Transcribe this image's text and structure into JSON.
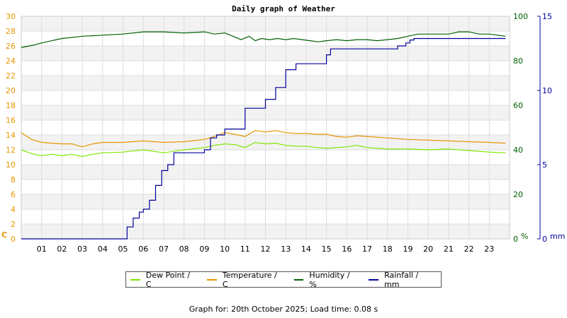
{
  "title": "Daily graph of Weather",
  "footer": "Graph for: 20th October 2025; Load time: 0.08 s",
  "colors": {
    "dew_point": "#7ee600",
    "temperature": "#e69500",
    "humidity": "#005f00",
    "rainfall": "#00009c",
    "axis_left": "#e69500",
    "axis_humidity": "#005f00",
    "axis_rain": "#00009c",
    "band": "#f2f2f2",
    "grid": "#dddddd"
  },
  "legend": [
    {
      "label": "Dew Point / C",
      "color": "#7ee600"
    },
    {
      "label": "Temperature / C",
      "color": "#e69500"
    },
    {
      "label": "Humidity / %",
      "color": "#005f00"
    },
    {
      "label": "Rainfall / mm",
      "color": "#00009c"
    }
  ],
  "chart_data": {
    "type": "line",
    "title": "Daily graph of Weather",
    "x_ticks": [
      "01",
      "02",
      "03",
      "04",
      "05",
      "06",
      "07",
      "08",
      "09",
      "10",
      "11",
      "12",
      "13",
      "14",
      "15",
      "16",
      "17",
      "18",
      "19",
      "20",
      "21",
      "22",
      "23"
    ],
    "xlim": [
      0,
      24
    ],
    "grid": true,
    "legend_position": "bottom",
    "axes": {
      "left": {
        "unit_label": "C",
        "range": [
          0,
          30
        ],
        "ticks": [
          "0",
          "2",
          "4",
          "6",
          "8",
          "10",
          "12",
          "14",
          "16",
          "18",
          "20",
          "22",
          "24",
          "26",
          "28",
          "30"
        ]
      },
      "humidity": {
        "unit_label": "%",
        "range": [
          0,
          100
        ],
        "ticks": [
          "0",
          "20",
          "40",
          "60",
          "80",
          "100"
        ]
      },
      "rain": {
        "unit_label": "mm",
        "range": [
          0,
          15
        ],
        "ticks": [
          "0",
          "5",
          "10",
          "15"
        ]
      }
    },
    "series": [
      {
        "name": "Dew Point / C",
        "axis": "left",
        "x": [
          0,
          0.5,
          1,
          1.5,
          2,
          2.5,
          3,
          3.5,
          4,
          5,
          6,
          7,
          8,
          9,
          9.5,
          10,
          10.5,
          11,
          11.5,
          12,
          12.5,
          13,
          13.5,
          14,
          14.5,
          15,
          15.5,
          16,
          16.5,
          17,
          18,
          19,
          20,
          21,
          22,
          23,
          23.8
        ],
        "y": [
          12.0,
          11.5,
          11.2,
          11.4,
          11.2,
          11.4,
          11.1,
          11.4,
          11.6,
          11.7,
          12.0,
          11.6,
          12.0,
          12.3,
          12.6,
          12.8,
          12.7,
          12.3,
          13.0,
          12.8,
          12.9,
          12.6,
          12.5,
          12.5,
          12.3,
          12.2,
          12.3,
          12.4,
          12.6,
          12.3,
          12.1,
          12.1,
          12.0,
          12.1,
          11.9,
          11.7,
          11.6
        ]
      },
      {
        "name": "Temperature / C",
        "axis": "left",
        "x": [
          0,
          0.5,
          1,
          1.5,
          2,
          2.5,
          3,
          3.5,
          4,
          5,
          6,
          7,
          8,
          9,
          9.5,
          10,
          10.5,
          11,
          11.5,
          12,
          12.5,
          13,
          13.5,
          14,
          14.5,
          15,
          15.5,
          16,
          16.5,
          17,
          18,
          19,
          20,
          21,
          22,
          23,
          23.8
        ],
        "y": [
          14.3,
          13.4,
          13.0,
          12.9,
          12.8,
          12.8,
          12.4,
          12.8,
          13.0,
          13.0,
          13.2,
          13.0,
          13.1,
          13.4,
          13.8,
          14.3,
          14.1,
          13.8,
          14.6,
          14.4,
          14.6,
          14.3,
          14.2,
          14.2,
          14.1,
          14.1,
          13.8,
          13.7,
          13.9,
          13.8,
          13.6,
          13.4,
          13.3,
          13.2,
          13.1,
          13.0,
          12.9
        ]
      },
      {
        "name": "Humidity / %",
        "axis": "humidity",
        "x": [
          0,
          0.3,
          0.6,
          1,
          1.5,
          2,
          3,
          4,
          5,
          6,
          7,
          8,
          9,
          9.5,
          10,
          10.4,
          10.8,
          11.2,
          11.5,
          11.8,
          12.2,
          12.6,
          13,
          13.4,
          13.8,
          14.2,
          14.6,
          15,
          15.5,
          16,
          16.5,
          17,
          17.5,
          18,
          18.5,
          19,
          19.5,
          20,
          20.5,
          21,
          21.5,
          22,
          22.5,
          23,
          23.8
        ],
        "y": [
          86,
          86.5,
          87,
          88,
          89,
          90,
          91,
          91.5,
          92,
          93,
          93,
          92.5,
          93,
          92,
          92.5,
          91,
          89.5,
          91,
          89,
          90,
          89.5,
          90,
          89.5,
          90,
          89.5,
          89,
          88.5,
          89,
          89.5,
          89,
          89.5,
          89.5,
          89,
          89.5,
          90,
          91,
          92,
          92,
          92,
          92,
          93,
          93,
          92,
          92,
          91
        ]
      },
      {
        "name": "Rainfall / mm",
        "axis": "rain",
        "x": [
          0,
          5,
          5.2,
          5.5,
          5.8,
          6,
          6.3,
          6.6,
          6.9,
          7.2,
          7.5,
          8,
          8.5,
          9,
          9.3,
          9.6,
          10,
          10.5,
          11,
          11.5,
          12,
          12.5,
          13,
          13.5,
          14,
          14.5,
          15,
          15.2,
          15.5,
          16,
          16.5,
          17,
          18,
          18.5,
          18.9,
          19.1,
          19.3,
          20,
          21,
          22,
          23,
          23.8
        ],
        "y": [
          0,
          0,
          0.8,
          1.4,
          1.8,
          2.0,
          2.6,
          3.6,
          4.6,
          5.0,
          5.8,
          5.8,
          5.8,
          6.0,
          6.8,
          7.0,
          7.4,
          7.4,
          8.8,
          8.8,
          9.4,
          10.2,
          11.4,
          11.8,
          11.8,
          11.8,
          12.4,
          12.8,
          12.8,
          12.8,
          12.8,
          12.8,
          12.8,
          13.0,
          13.2,
          13.4,
          13.5,
          13.5,
          13.5,
          13.5,
          13.5,
          13.5
        ]
      }
    ]
  }
}
